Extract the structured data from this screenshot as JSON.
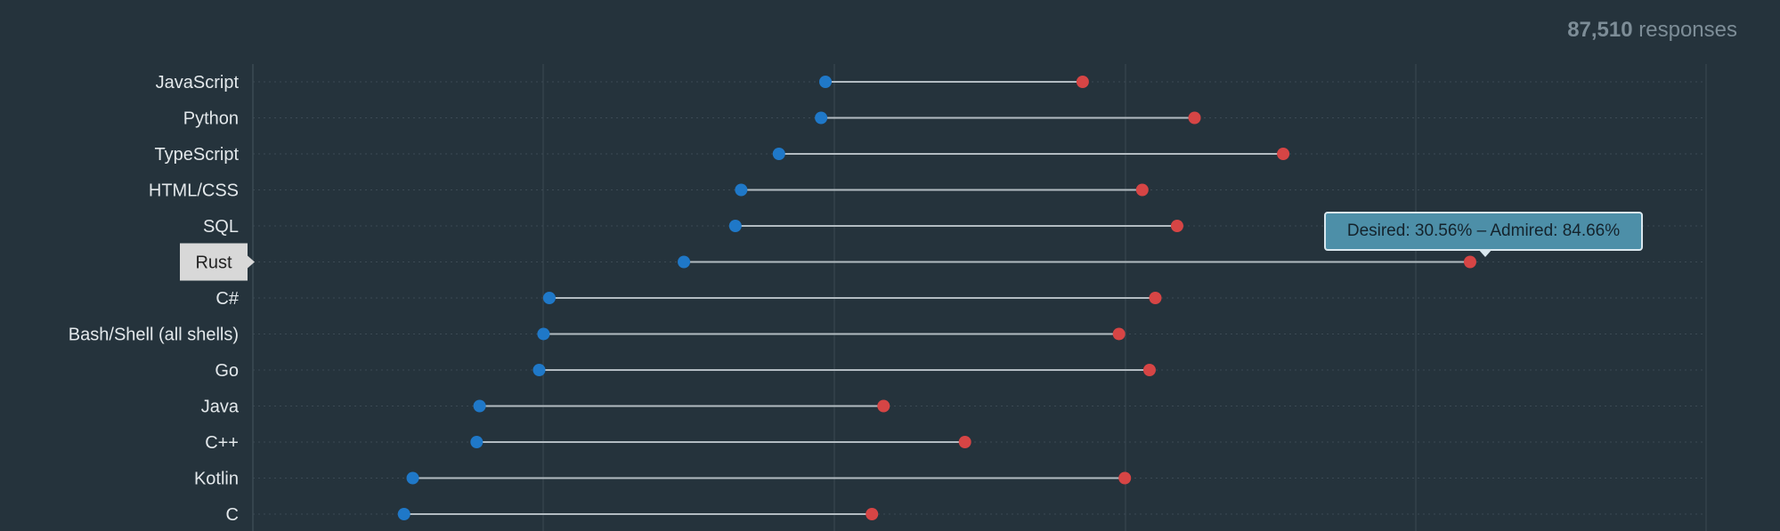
{
  "header": {
    "responses_count": "87,510",
    "responses_label": "responses"
  },
  "tooltip": {
    "text": "Desired: 30.56% – Admired: 84.66%"
  },
  "colors": {
    "background": "#25333c",
    "desired": "#1f78c8",
    "admired": "#d64545",
    "connector": "#b3bcc2",
    "label": "#e3e8eb",
    "highlight_bg": "#d8d8d8",
    "highlight_text": "#222222"
  },
  "chart_data": {
    "type": "dumbbell",
    "highlighted": "Rust",
    "xlim": [
      0,
      100
    ],
    "grid": true,
    "series": [
      {
        "name": "Desired",
        "key": "desired"
      },
      {
        "name": "Admired",
        "key": "admired"
      }
    ],
    "categories": [
      "JavaScript",
      "Python",
      "TypeScript",
      "HTML/CSS",
      "SQL",
      "Rust",
      "C#",
      "Bash/Shell (all shells)",
      "Go",
      "Java",
      "C++",
      "Kotlin",
      "C"
    ],
    "desired": [
      40.3,
      40.0,
      37.1,
      34.5,
      34.1,
      30.56,
      21.3,
      20.9,
      20.6,
      16.5,
      16.3,
      11.9,
      11.3
    ],
    "admired": [
      58.0,
      65.7,
      71.8,
      62.1,
      64.5,
      84.66,
      63.0,
      60.5,
      62.6,
      44.3,
      49.9,
      60.9,
      43.5
    ]
  }
}
